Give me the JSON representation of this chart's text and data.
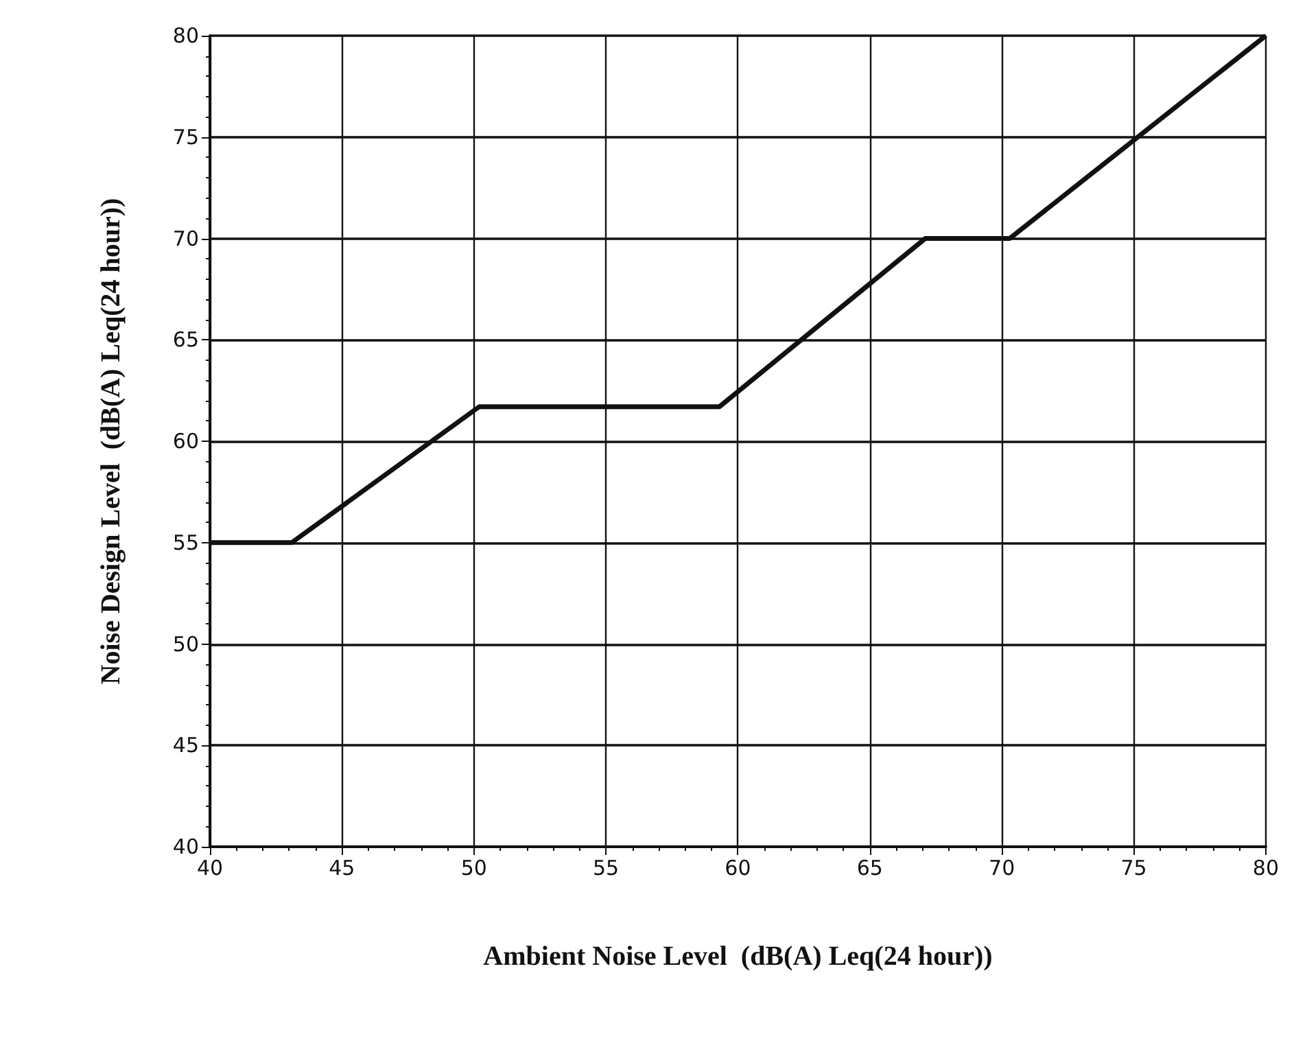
{
  "chart_data": {
    "type": "line",
    "xlabel": "Ambient Noise Level  (dB(A) Leq(24 hour))",
    "ylabel": "Noise Design Level  (dB(A) Leq(24 hour))",
    "x": [
      40,
      43.1,
      50.2,
      59.3,
      67.1,
      70.3,
      80
    ],
    "series": [
      {
        "color": "#111111",
        "values": [
          55,
          55,
          61.7,
          61.7,
          70,
          70,
          80
        ]
      }
    ],
    "xlim": [
      40,
      80
    ],
    "xticks": [
      40,
      45,
      50,
      55,
      60,
      65,
      70,
      75,
      80
    ],
    "ylim": [
      40,
      80
    ],
    "yticks": [
      40,
      45,
      50,
      55,
      60,
      65,
      70,
      75,
      80
    ],
    "grid": true,
    "marker": "none",
    "line_style": "solid"
  }
}
